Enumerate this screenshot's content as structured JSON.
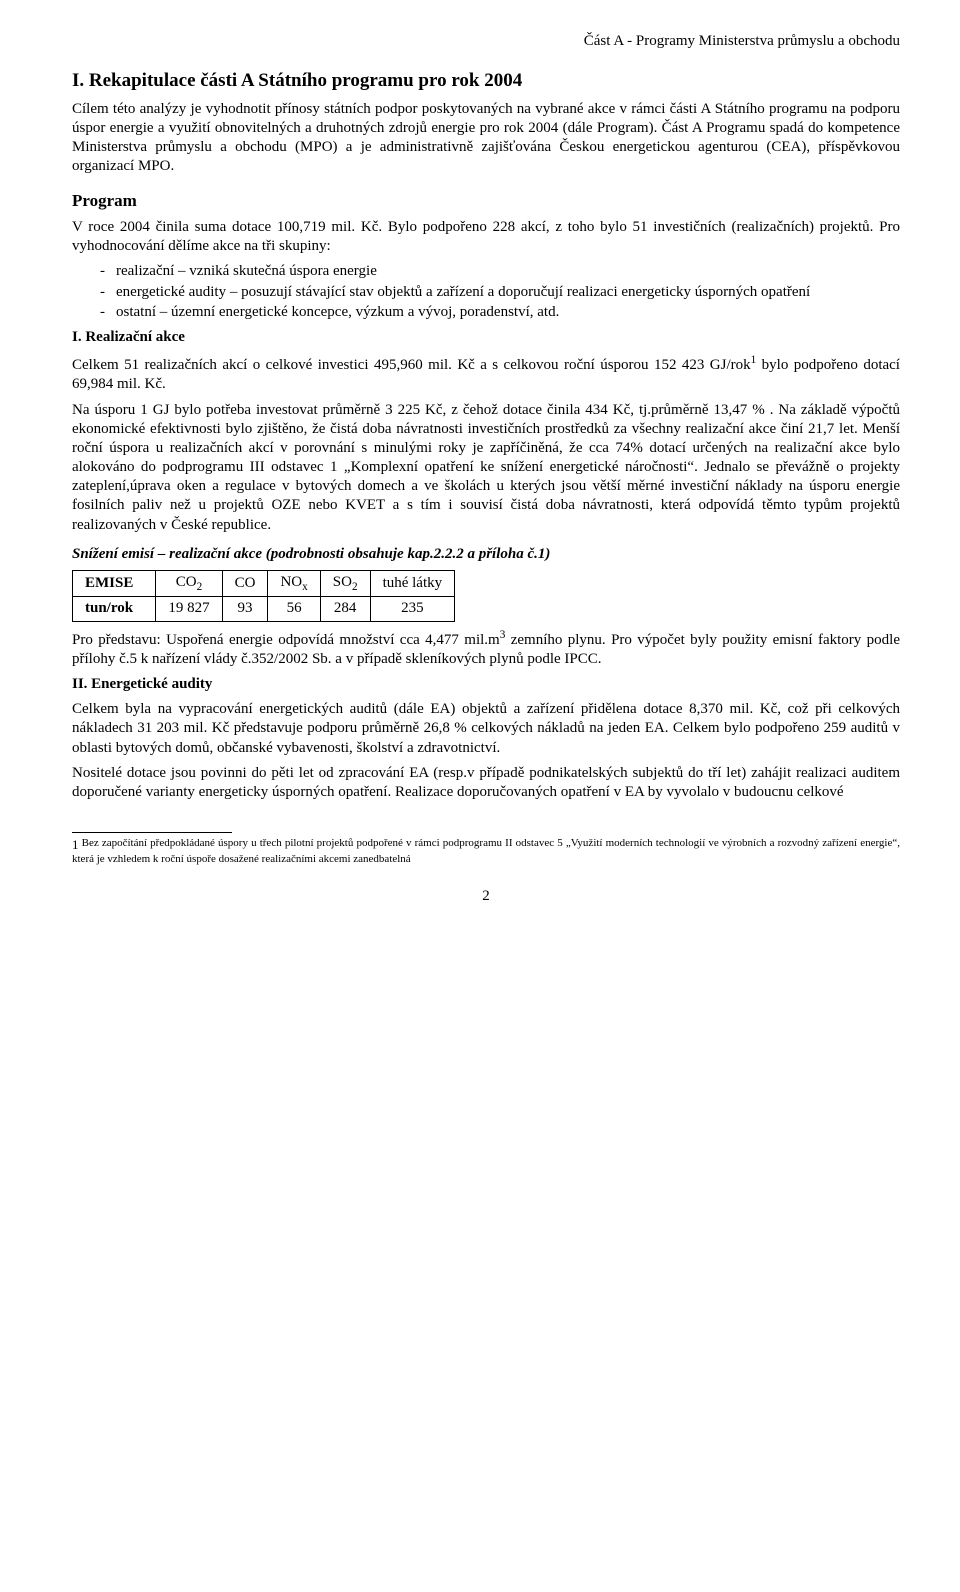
{
  "header": {
    "right": "Část A - Programy Ministerstva průmyslu a obchodu"
  },
  "title": "I. Rekapitulace části A Státního programu pro rok 2004",
  "intro": "Cílem této analýzy je vyhodnotit přínosy státních podpor poskytovaných na vybrané akce v rámci části A Státního programu na podporu úspor energie a využití obnovitelných a druhotných zdrojů energie pro rok 2004 (dále Program). Část A Programu spadá do kompetence Ministerstva průmyslu a obchodu (MPO) a je administrativně zajišťována Českou energetickou agenturou (CEA), příspěvkovou organizací MPO.",
  "program_heading": "Program",
  "program_p1": "V roce 2004 činila suma dotace 100,719 mil. Kč. Bylo podpořeno  228 akcí, z toho bylo 51 investičních (realizačních) projektů. Pro vyhodnocování dělíme akce na tři skupiny:",
  "bullets": [
    "realizační – vzniká skutečná úspora energie",
    "energetické audity – posuzují stávající stav objektů a zařízení a doporučují realizaci energeticky úsporných opatření",
    "ostatní – územní energetické koncepce, výzkum a vývoj, poradenství, atd."
  ],
  "sec1_heading": "I. Realizační akce",
  "sec1_p1_a": "Celkem 51 realizačních akcí o celkové investici 495,960  mil. Kč a s celkovou roční úsporou 152 423 GJ/rok",
  "sec1_p1_b": " bylo podpořeno dotací 69,984  mil. Kč.",
  "sec1_p2": "Na úsporu 1 GJ bylo potřeba investovat průměrně 3 225  Kč, z čehož dotace činila 434 Kč, tj.průměrně 13,47 % . Na základě výpočtů ekonomické efektivnosti bylo zjištěno, že čistá doba návratnosti investičních prostředků za všechny realizační akce činí 21,7 let. Menší roční úspora u realizačních akcí v porovnání s minulými roky je zapříčiněná, že cca 74% dotací určených na realizační akce bylo alokováno do podprogramu III odstavec 1 „Komplexní opatření ke snížení energetické náročnosti“.  Jednalo se převážně o projekty zateplení,úprava oken a regulace v bytových domech a ve školách u kterých jsou větší měrné investiční náklady na úsporu energie fosilních paliv než u projektů OZE nebo KVET a s tím i souvisí čistá doba návratnosti, která odpovídá těmto typům projektů realizovaných v České republice.",
  "emise_caption": "Snížení emisí – realizační  akce (podrobnosti obsahuje kap.2.2.2 a příloha č.1)",
  "emise_table": {
    "type": "table",
    "columns": [
      "EMISE",
      "CO2",
      "CO",
      "NOx",
      "SO2",
      "tuhé látky"
    ],
    "row_label": "tun/rok",
    "row_values": [
      "19 827",
      "93",
      "56",
      "284",
      "235"
    ],
    "border_color": "#000000",
    "cell_padding": "2px 12px",
    "font_family": "Times New Roman",
    "font_size": 15
  },
  "after_table": "Pro představu: Uspořená energie odpovídá množství cca 4,477  mil.m",
  "after_table_b": " zemního plynu. Pro výpočet byly použity emisní faktory podle přílohy č.5 k nařízení vlády č.352/2002  Sb. a v případě skleníkových plynů podle IPCC.",
  "sec2_heading": "II. Energetické audity",
  "sec2_p1": "Celkem byla na vypracování energetických auditů  (dále EA) objektů a zařízení  přidělena dotace 8,370 mil. Kč, což při celkových nákladech 31 203 mil. Kč představuje podporu průměrně 26,8 % celkových nákladů na jeden EA. Celkem bylo podpořeno 259 auditů v oblasti bytových domů, občanské vybavenosti, školství a zdravotnictví.",
  "sec2_p2": "Nositelé dotace jsou povinni do pěti let od zpracování EA (resp.v případě podnikatelských subjektů do tří let) zahájit realizaci auditem doporučené varianty energeticky úsporných opatření. Realizace doporučovaných opatření v EA by vyvolalo v budoucnu celkové",
  "footnote_num": "1",
  "footnote": " Bez započítání předpokládané úspory u třech pilotní projektů podpořené v rámci podprogramu II odstavec 5 „Využití moderních technologií ve výrobních a rozvodný zařízení energie“, která je vzhledem k roční úspoře dosažené  realizačními akcemi zanedbatelná",
  "pagenum": "2"
}
